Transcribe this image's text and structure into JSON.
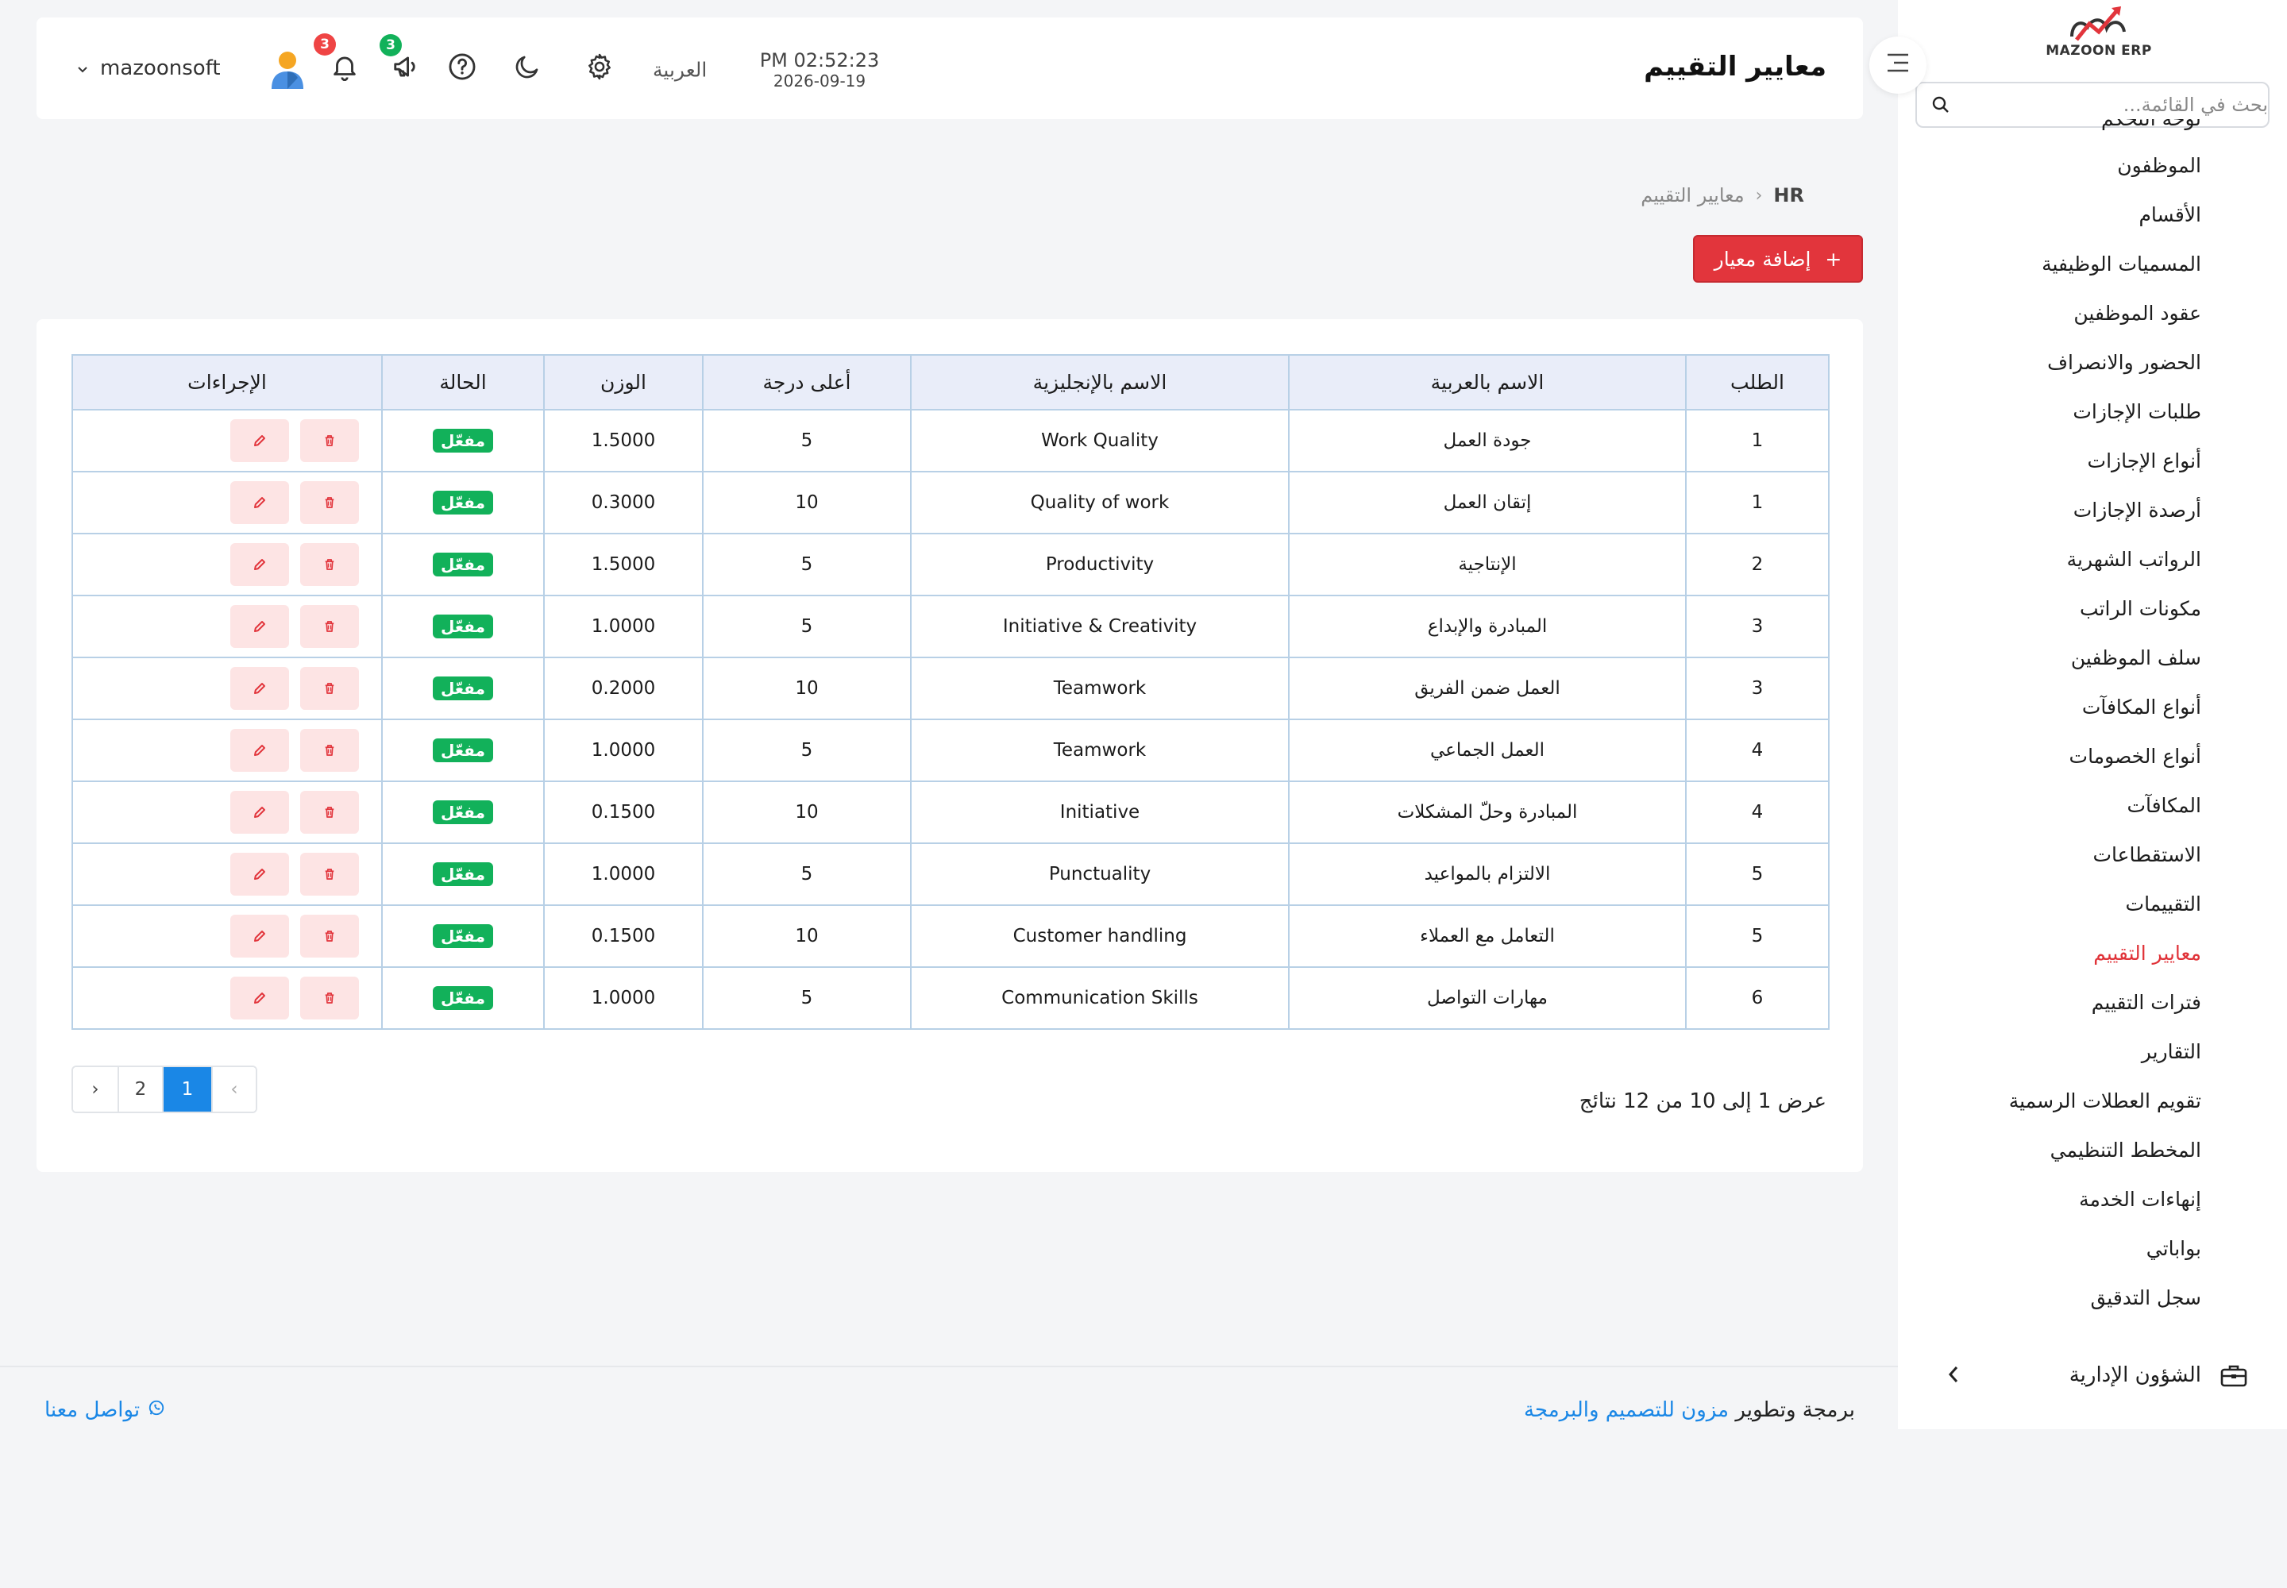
{
  "brand": {
    "logo_text": "MAZOON ERP",
    "logo_sub": "ERPـــ"
  },
  "sidebar": {
    "search_placeholder": "بحث في القائمة...",
    "clipped_item": "لوحة التحكم",
    "items": [
      {
        "label": "الموظفون"
      },
      {
        "label": "الأقسام"
      },
      {
        "label": "المسميات الوظيفية"
      },
      {
        "label": "عقود الموظفين"
      },
      {
        "label": "الحضور والانصراف"
      },
      {
        "label": "طلبات الإجازات"
      },
      {
        "label": "أنواع الإجازات"
      },
      {
        "label": "أرصدة الإجازات"
      },
      {
        "label": "الرواتب الشهرية"
      },
      {
        "label": "مكونات الراتب"
      },
      {
        "label": "سلف الموظفين"
      },
      {
        "label": "أنواع المكافآت"
      },
      {
        "label": "أنواع الخصومات"
      },
      {
        "label": "المكافآت"
      },
      {
        "label": "الاستقطاعات"
      },
      {
        "label": "التقييمات"
      },
      {
        "label": "معايير التقييم",
        "active": true
      },
      {
        "label": "فترات التقييم"
      },
      {
        "label": "التقارير"
      },
      {
        "label": "تقويم العطلات الرسمية"
      },
      {
        "label": "المخطط التنظيمي"
      },
      {
        "label": "إنهاءات الخدمة"
      },
      {
        "label": "بواباتي"
      },
      {
        "label": "سجل التدقيق"
      }
    ],
    "section": {
      "label": "الشؤون الإدارية",
      "icon": "briefcase-icon"
    }
  },
  "header": {
    "title": "معايير التقييم",
    "time": "PM 02:52:23",
    "date": "2026-09-19",
    "language": "العربية",
    "notifications_count": "3",
    "announcements_count": "3",
    "username": "mazoonsoft"
  },
  "breadcrumb": {
    "home": "HR",
    "current": "معايير التقييم"
  },
  "add_button": {
    "label": "إضافة معيار",
    "icon": "+"
  },
  "table": {
    "columns": [
      "الطلب",
      "الاسم بالعربية",
      "الاسم بالإنجليزية",
      "أعلى درجة",
      "الوزن",
      "الحالة",
      "الإجراءات"
    ],
    "rows": [
      {
        "order": "1",
        "name_ar": "جودة العمل",
        "name_en": "Work Quality",
        "max": "5",
        "weight": "1.5000",
        "status": "مفعّل"
      },
      {
        "order": "1",
        "name_ar": "إتقان العمل",
        "name_en": "Quality of work",
        "max": "10",
        "weight": "0.3000",
        "status": "مفعّل"
      },
      {
        "order": "2",
        "name_ar": "الإنتاجية",
        "name_en": "Productivity",
        "max": "5",
        "weight": "1.5000",
        "status": "مفعّل"
      },
      {
        "order": "3",
        "name_ar": "المبادرة والإبداع",
        "name_en": "Initiative & Creativity",
        "max": "5",
        "weight": "1.0000",
        "status": "مفعّل"
      },
      {
        "order": "3",
        "name_ar": "العمل ضمن الفريق",
        "name_en": "Teamwork",
        "max": "10",
        "weight": "0.2000",
        "status": "مفعّل"
      },
      {
        "order": "4",
        "name_ar": "العمل الجماعي",
        "name_en": "Teamwork",
        "max": "5",
        "weight": "1.0000",
        "status": "مفعّل"
      },
      {
        "order": "4",
        "name_ar": "المبادرة وحلّ المشكلات",
        "name_en": "Initiative",
        "max": "10",
        "weight": "0.1500",
        "status": "مفعّل"
      },
      {
        "order": "5",
        "name_ar": "الالتزام بالمواعيد",
        "name_en": "Punctuality",
        "max": "5",
        "weight": "1.0000",
        "status": "مفعّل"
      },
      {
        "order": "5",
        "name_ar": "التعامل مع العملاء",
        "name_en": "Customer handling",
        "max": "10",
        "weight": "0.1500",
        "status": "مفعّل"
      },
      {
        "order": "6",
        "name_ar": "مهارات التواصل",
        "name_en": "Communication Skills",
        "max": "5",
        "weight": "1.0000",
        "status": "مفعّل"
      }
    ]
  },
  "pagination": {
    "summary": "عرض 1 إلى 10 من 12 نتائج",
    "prev": "‹",
    "next": "›",
    "pages": [
      "1",
      "2"
    ],
    "current": "1"
  },
  "footer": {
    "prefix": "برمجة وتطوير",
    "company": "مزون للتصميم والبرمجة",
    "contact": "تواصل معنا"
  },
  "colors": {
    "accent": "#e2353c",
    "active_link": "#e03238",
    "status_green": "#12b15a",
    "link_blue": "#1a87e6"
  }
}
